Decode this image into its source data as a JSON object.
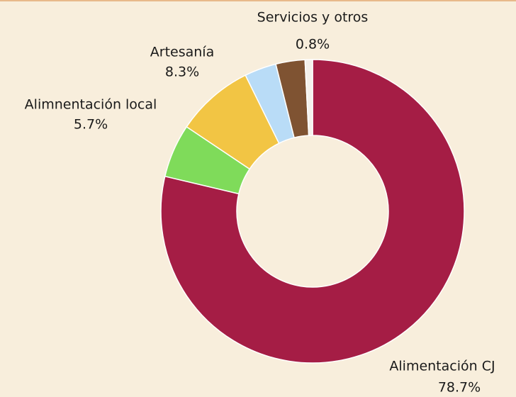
{
  "chart_data": {
    "type": "donut",
    "categories": [
      "Alimentación CJ",
      "Alimnentación local",
      "Artesanía",
      null,
      null,
      "Servicios y otros"
    ],
    "values": [
      78.7,
      5.7,
      8.3,
      3.4,
      3.1,
      0.8
    ],
    "value_labels": [
      "78.7%",
      "5.7%",
      "8.3%",
      null,
      null,
      "0.8%"
    ],
    "colors": [
      "#a51d45",
      "#7fdb5a",
      "#f2c544",
      "#b9dcf7",
      "#7f5332",
      "#f4f1ec"
    ]
  }
}
